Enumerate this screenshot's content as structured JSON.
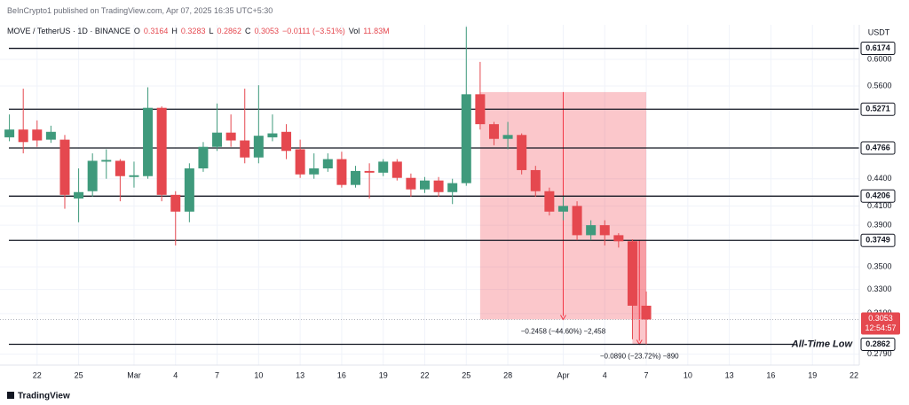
{
  "chart_data": {
    "type": "candlestick",
    "header": "BeInCrypto1 published on TradingView.com, Apr 07, 2025 16:35 UTC+5:30",
    "symbol": "MOVE / TetherUS · 1D · BINANCE",
    "legend": [
      {
        "key": "O",
        "value": "0.3164"
      },
      {
        "key": "H",
        "value": "0.3283"
      },
      {
        "key": "L",
        "value": "0.2862"
      },
      {
        "key": "C",
        "value": "0.3053"
      }
    ],
    "change": "−0.0111 (−3.51%)",
    "volume": {
      "key": "Vol",
      "value": "11.83M"
    },
    "currency": "USDT",
    "x": [
      "2025-02-20",
      "2025-02-21",
      "2025-02-22",
      "2025-02-23",
      "2025-02-24",
      "2025-02-25",
      "2025-02-26",
      "2025-02-27",
      "2025-02-28",
      "2025-03-01",
      "2025-03-02",
      "2025-03-03",
      "2025-03-04",
      "2025-03-05",
      "2025-03-06",
      "2025-03-07",
      "2025-03-08",
      "2025-03-09",
      "2025-03-10",
      "2025-03-11",
      "2025-03-12",
      "2025-03-13",
      "2025-03-14",
      "2025-03-15",
      "2025-03-16",
      "2025-03-17",
      "2025-03-18",
      "2025-03-19",
      "2025-03-20",
      "2025-03-21",
      "2025-03-22",
      "2025-03-23",
      "2025-03-24",
      "2025-03-25",
      "2025-03-26",
      "2025-03-27",
      "2025-03-28",
      "2025-03-29",
      "2025-03-30",
      "2025-03-31",
      "2025-04-01",
      "2025-04-02",
      "2025-04-03",
      "2025-04-04",
      "2025-04-05",
      "2025-04-06",
      "2025-04-07"
    ],
    "open": [
      0.49,
      0.5,
      0.5,
      0.487,
      0.487,
      0.418,
      0.426,
      0.46,
      0.461,
      0.442,
      0.443,
      0.529,
      0.422,
      0.404,
      0.452,
      0.478,
      0.496,
      0.486,
      0.465,
      0.49,
      0.497,
      0.475,
      0.445,
      0.452,
      0.463,
      0.433,
      0.449,
      0.447,
      0.46,
      0.441,
      0.428,
      0.438,
      0.425,
      0.435,
      0.548,
      0.507,
      0.488,
      0.493,
      0.45,
      0.426,
      0.404,
      0.41,
      0.38,
      0.39,
      0.38,
      0.374,
      0.3164
    ],
    "high": [
      0.52,
      0.556,
      0.512,
      0.505,
      0.493,
      0.452,
      0.47,
      0.475,
      0.463,
      0.46,
      0.558,
      0.531,
      0.426,
      0.458,
      0.484,
      0.535,
      0.52,
      0.556,
      0.561,
      0.52,
      0.507,
      0.487,
      0.47,
      0.47,
      0.472,
      0.455,
      0.458,
      0.463,
      0.463,
      0.446,
      0.442,
      0.442,
      0.44,
      0.653,
      0.596,
      0.51,
      0.51,
      0.495,
      0.455,
      0.43,
      0.42,
      0.415,
      0.395,
      0.395,
      0.382,
      0.376,
      0.3283
    ],
    "low": [
      0.485,
      0.47,
      0.478,
      0.483,
      0.407,
      0.393,
      0.42,
      0.44,
      0.415,
      0.43,
      0.44,
      0.415,
      0.37,
      0.393,
      0.448,
      0.473,
      0.478,
      0.458,
      0.458,
      0.485,
      0.463,
      0.441,
      0.44,
      0.448,
      0.43,
      0.43,
      0.418,
      0.443,
      0.438,
      0.42,
      0.424,
      0.42,
      0.412,
      0.432,
      0.5,
      0.48,
      0.475,
      0.445,
      0.42,
      0.4,
      0.395,
      0.375,
      0.375,
      0.37,
      0.368,
      0.29,
      0.2862
    ],
    "close": [
      0.5,
      0.484,
      0.486,
      0.497,
      0.422,
      0.425,
      0.461,
      0.462,
      0.443,
      0.444,
      0.529,
      0.422,
      0.404,
      0.452,
      0.478,
      0.496,
      0.486,
      0.465,
      0.492,
      0.495,
      0.473,
      0.445,
      0.452,
      0.463,
      0.433,
      0.449,
      0.447,
      0.46,
      0.441,
      0.428,
      0.438,
      0.425,
      0.435,
      0.548,
      0.507,
      0.488,
      0.493,
      0.45,
      0.426,
      0.404,
      0.41,
      0.38,
      0.39,
      0.38,
      0.374,
      0.3164,
      0.3053
    ],
    "up_color": "#3f9a7c",
    "down_color": "#e5484f",
    "log_scale": true,
    "xlim": [
      "2025-02-19",
      "2025-04-22"
    ],
    "ylim": [
      0.2724,
      0.6533
    ],
    "xticks": [
      {
        "value": "2025-02-22",
        "label": "22"
      },
      {
        "value": "2025-02-25",
        "label": "25"
      },
      {
        "value": "2025-03-01",
        "label": "Mar"
      },
      {
        "value": "2025-03-04",
        "label": "4"
      },
      {
        "value": "2025-03-07",
        "label": "7"
      },
      {
        "value": "2025-03-10",
        "label": "10"
      },
      {
        "value": "2025-03-13",
        "label": "13"
      },
      {
        "value": "2025-03-16",
        "label": "16"
      },
      {
        "value": "2025-03-19",
        "label": "19"
      },
      {
        "value": "2025-03-22",
        "label": "22"
      },
      {
        "value": "2025-03-25",
        "label": "25"
      },
      {
        "value": "2025-03-28",
        "label": "28"
      },
      {
        "value": "2025-04-01",
        "label": "Apr"
      },
      {
        "value": "2025-04-04",
        "label": "4"
      },
      {
        "value": "2025-04-07",
        "label": "7"
      },
      {
        "value": "2025-04-10",
        "label": "10"
      },
      {
        "value": "2025-04-13",
        "label": "13"
      },
      {
        "value": "2025-04-16",
        "label": "16"
      },
      {
        "value": "2025-04-19",
        "label": "19"
      },
      {
        "value": "2025-04-22",
        "label": "22"
      }
    ],
    "yticks": [
      {
        "value": 0.6,
        "label": "0.6000"
      },
      {
        "value": 0.56,
        "label": "0.5600"
      },
      {
        "value": 0.44,
        "label": "0.4400"
      },
      {
        "value": 0.41,
        "label": "0.4100"
      },
      {
        "value": 0.39,
        "label": "0.3900"
      },
      {
        "value": 0.35,
        "label": "0.3500"
      },
      {
        "value": 0.33,
        "label": "0.3300"
      },
      {
        "value": 0.31,
        "label": "0.3100"
      },
      {
        "value": 0.279,
        "label": "0.2790"
      }
    ],
    "grid": true,
    "levels": [
      0.6174,
      0.5271,
      0.4766,
      0.4206,
      0.3749,
      0.2862
    ],
    "level_color": "#131722",
    "last_price": 0.3053,
    "countdown": "12:54:57",
    "annotation": "All-Time Low",
    "measures": [
      {
        "x": [
          "2025-03-26",
          "2025-04-07"
        ],
        "from": 0.5511,
        "to": 0.3053,
        "label": "−0.2458 (−44.60%) −2,458"
      },
      {
        "x": [
          "2025-04-06",
          "2025-04-07"
        ],
        "from": 0.3752,
        "to": 0.2862,
        "label": "−0.0890 (−23.72%) −890"
      }
    ],
    "measure_color": "#f23645",
    "branding": "TradingView"
  }
}
